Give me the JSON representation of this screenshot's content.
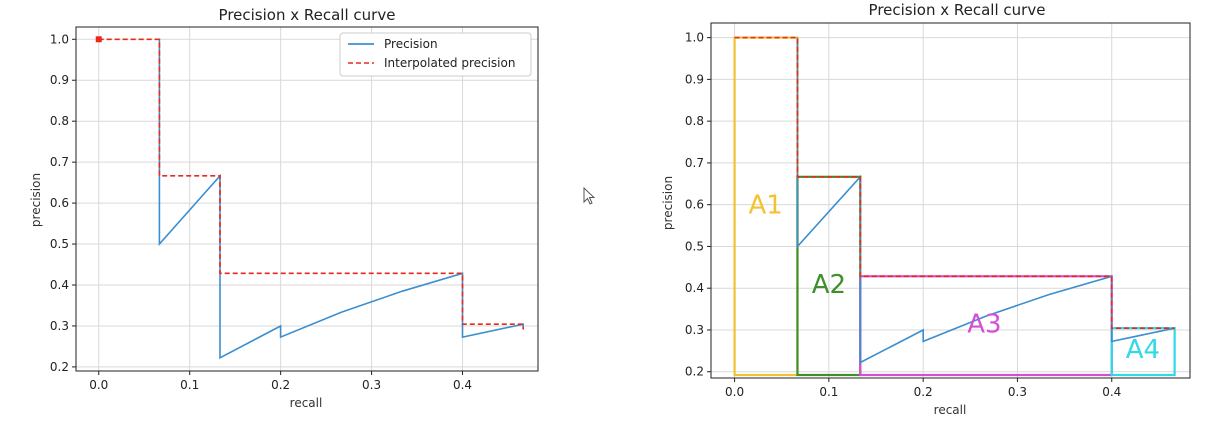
{
  "chart_data": [
    {
      "type": "line",
      "title": "Precision x Recall curve",
      "xlabel": "recall",
      "ylabel": "precision",
      "xlim": [
        -0.025,
        0.483
      ],
      "ylim": [
        0.19,
        1.03
      ],
      "xticks": [
        "0.0",
        "0.1",
        "0.2",
        "0.3",
        "0.4"
      ],
      "xtick_values": [
        0,
        0.1,
        0.2,
        0.3,
        0.4
      ],
      "yticks": [
        "0.2",
        "0.3",
        "0.4",
        "0.5",
        "0.6",
        "0.7",
        "0.8",
        "0.9",
        "1.0"
      ],
      "ytick_values": [
        0.2,
        0.3,
        0.4,
        0.5,
        0.6,
        0.7,
        0.8,
        0.9,
        1.0
      ],
      "grid": true,
      "legend_position": "top-right",
      "series": [
        {
          "name": "Precision",
          "style": "solid",
          "color": "#3b8fd0",
          "x": [
            0.0667,
            0.0667,
            0.1333,
            0.1333,
            0.2,
            0.2,
            0.2667,
            0.3333,
            0.4,
            0.4,
            0.4667,
            0.4667
          ],
          "y": [
            1.0,
            0.5,
            0.6667,
            0.2222,
            0.3,
            0.2727,
            0.3333,
            0.3846,
            0.4286,
            0.2727,
            0.3043,
            0.2917
          ]
        },
        {
          "name": "Interpolated precision",
          "style": "dashed",
          "color": "#e8291c",
          "x": [
            0.0,
            0.0667,
            0.0667,
            0.1333,
            0.1333,
            0.4,
            0.4,
            0.4667,
            0.4667
          ],
          "y": [
            1.0,
            1.0,
            0.6667,
            0.6667,
            0.4286,
            0.4286,
            0.3043,
            0.3043,
            0.2917
          ]
        }
      ]
    },
    {
      "type": "line",
      "title": "Precision x Recall curve",
      "xlabel": "recall",
      "ylabel": "precision",
      "xlim": [
        -0.025,
        0.483
      ],
      "ylim": [
        0.185,
        1.035
      ],
      "xticks": [
        "0.0",
        "0.1",
        "0.2",
        "0.3",
        "0.4"
      ],
      "xtick_values": [
        0,
        0.1,
        0.2,
        0.3,
        0.4
      ],
      "yticks": [
        "0.2",
        "0.3",
        "0.4",
        "0.5",
        "0.6",
        "0.7",
        "0.8",
        "0.9",
        "1.0"
      ],
      "ytick_values": [
        0.2,
        0.3,
        0.4,
        0.5,
        0.6,
        0.7,
        0.8,
        0.9,
        1.0
      ],
      "grid": true,
      "series": [
        {
          "name": "",
          "style": "solid",
          "color": "#3b8fd0",
          "x": [
            0.0667,
            0.0667,
            0.1333,
            0.1333,
            0.2,
            0.2,
            0.2667,
            0.3333,
            0.4,
            0.4,
            0.4667
          ],
          "y": [
            1.0,
            0.5,
            0.6667,
            0.2222,
            0.3,
            0.2727,
            0.3333,
            0.3846,
            0.4286,
            0.2727,
            0.3043
          ]
        },
        {
          "name": "",
          "style": "dashed",
          "color": "#e8291c",
          "x": [
            0.0,
            0.0667,
            0.0667,
            0.1333,
            0.1333,
            0.4,
            0.4,
            0.4667
          ],
          "y": [
            1.0,
            1.0,
            0.6667,
            0.6667,
            0.4286,
            0.4286,
            0.3043,
            0.3043
          ]
        }
      ],
      "areas": [
        {
          "label": "A1",
          "x0": 0.0,
          "x1": 0.0667,
          "height": 1.0,
          "color": "#f2c230"
        },
        {
          "label": "A2",
          "x0": 0.0667,
          "x1": 0.1333,
          "height": 0.6667,
          "color": "#3f8f2a"
        },
        {
          "label": "A3",
          "x0": 0.1333,
          "x1": 0.4,
          "height": 0.4286,
          "color": "#d24fd6"
        },
        {
          "label": "A4",
          "x0": 0.4,
          "x1": 0.4667,
          "height": 0.3043,
          "color": "#2fd9e6"
        }
      ]
    }
  ]
}
